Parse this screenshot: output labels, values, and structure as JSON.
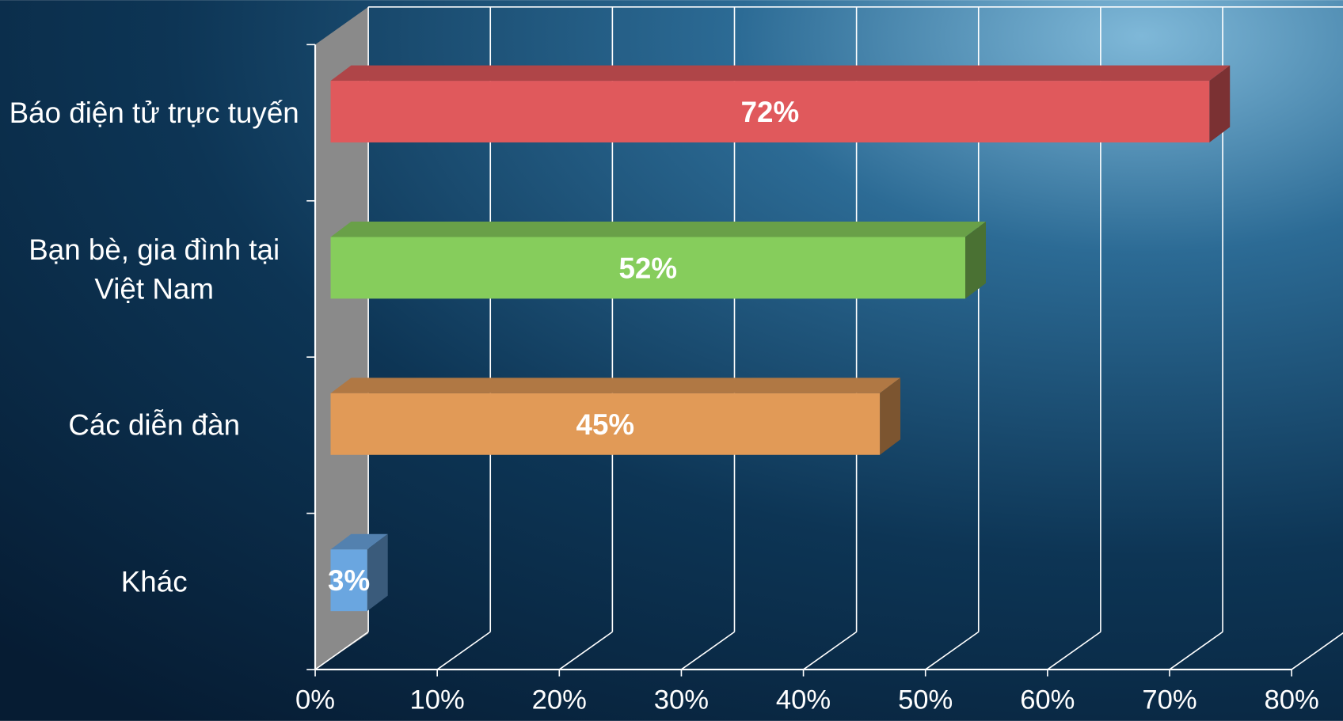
{
  "chart_data": {
    "type": "bar3d_horizontal",
    "categories": [
      "Báo điện tử trực tuyến",
      "Bạn bè, gia đình tại Việt Nam",
      "Các diễn đàn",
      "Khác"
    ],
    "values": [
      72,
      52,
      45,
      3
    ],
    "value_labels": [
      "72%",
      "52%",
      "45%",
      "3%"
    ],
    "colors": [
      "#e0595c",
      "#86cd5c",
      "#e19a57",
      "#6aa6e0"
    ],
    "xlim": [
      0,
      80
    ],
    "xticks": [
      {
        "value": 0,
        "label": "0%"
      },
      {
        "value": 10,
        "label": "10%"
      },
      {
        "value": 20,
        "label": "20%"
      },
      {
        "value": 30,
        "label": "30%"
      },
      {
        "value": 40,
        "label": "40%"
      },
      {
        "value": 50,
        "label": "50%"
      },
      {
        "value": 60,
        "label": "60%"
      },
      {
        "value": 70,
        "label": "70%"
      },
      {
        "value": 80,
        "label": "80%"
      }
    ],
    "grid": true
  }
}
